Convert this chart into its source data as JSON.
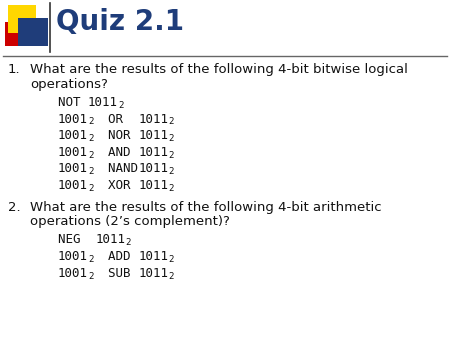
{
  "title": "Quiz 2.1",
  "title_color": "#1F3D7A",
  "title_fontsize": 20,
  "bg_color": "#ffffff",
  "body_fontsize": 9.5,
  "mono_fontsize": 9.0,
  "item1_header1": "What are the results of the following 4-bit bitwise logical",
  "item1_header2": "operations?",
  "item2_header1": "What are the results of the following 4-bit arithmetic",
  "item2_header2": "operations (2’s complement)?",
  "separator_color": "#666666",
  "body_color": "#111111",
  "logo_yellow": "#FFD700",
  "logo_red": "#CC0000",
  "logo_blue": "#1F3D7A"
}
